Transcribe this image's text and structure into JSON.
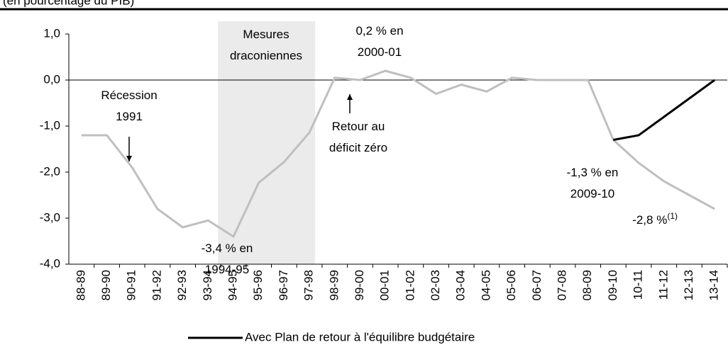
{
  "chart_data": {
    "type": "line",
    "subtitle": "(en pourcentage du PIB)",
    "categories": [
      "88-89",
      "89-90",
      "90-91",
      "91-92",
      "92-93",
      "93-94",
      "94-95",
      "95-96",
      "96-97",
      "97-98",
      "98-99",
      "99-00",
      "00-01",
      "01-02",
      "02-03",
      "03-04",
      "04-05",
      "05-06",
      "06-07",
      "07-08",
      "08-09",
      "09-10",
      "10-11",
      "11-12",
      "12-13",
      "13-14"
    ],
    "series": [
      {
        "color": "#bfbfbf",
        "values": [
          -1.2,
          -1.2,
          -1.9,
          -2.8,
          -3.2,
          -3.05,
          -3.4,
          -2.23,
          -1.78,
          -1.14,
          0.05,
          0.0,
          0.2,
          0.05,
          -0.3,
          -0.1,
          -0.25,
          0.05,
          0.0,
          0.0,
          0.0,
          -1.3,
          -1.8,
          -2.2,
          -2.5,
          -2.8
        ]
      },
      {
        "name": "Avec Plan de retour à l'équilibre budgétaire",
        "color": "#000000",
        "values": [
          null,
          null,
          null,
          null,
          null,
          null,
          null,
          null,
          null,
          null,
          null,
          null,
          null,
          null,
          null,
          null,
          null,
          null,
          null,
          null,
          null,
          -1.3,
          -1.2,
          -0.8,
          -0.4,
          0.0
        ]
      }
    ],
    "ylim": [
      -4,
      1
    ],
    "yticks": [
      {
        "value": 1,
        "label": "1,0"
      },
      {
        "value": 0,
        "label": "0,0"
      },
      {
        "value": -1,
        "label": "-1,0"
      },
      {
        "value": -2,
        "label": "-2,0"
      },
      {
        "value": -3,
        "label": "-3,0"
      },
      {
        "value": -4,
        "label": "-4,0"
      }
    ],
    "shaded_range": [
      "94-95",
      "97-98"
    ],
    "annotations": [
      {
        "text": [
          "Mesures",
          "draconiennes"
        ]
      },
      {
        "text": [
          "Récession",
          "1991"
        ]
      },
      {
        "text": [
          "0,2 % en",
          "2000-01"
        ]
      },
      {
        "text": [
          "Retour au",
          "déficit zéro"
        ]
      },
      {
        "text": [
          "-3,4 % en",
          "1994-95"
        ]
      },
      {
        "text": [
          "-1,3 % en",
          "2009-10"
        ]
      },
      {
        "text": [
          "-2,8 %"
        ],
        "note": "(1)"
      }
    ],
    "legend": "bottom"
  }
}
